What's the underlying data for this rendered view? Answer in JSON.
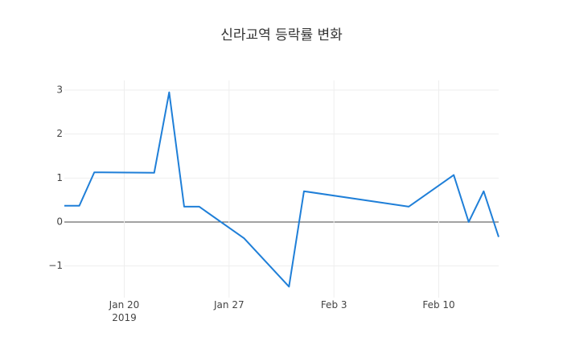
{
  "chart_data": {
    "type": "line",
    "title": "신라교역 등락률 변화",
    "x": [
      "2019-01-16",
      "2019-01-17",
      "2019-01-18",
      "2019-01-22",
      "2019-01-23",
      "2019-01-24",
      "2019-01-25",
      "2019-01-28",
      "2019-01-31",
      "2019-02-01",
      "2019-02-08",
      "2019-02-11",
      "2019-02-12",
      "2019-02-13",
      "2019-02-14"
    ],
    "series": [
      {
        "color": "#1f7fd8",
        "values": [
          0.37,
          0.37,
          1.13,
          1.12,
          2.95,
          0.35,
          0.35,
          -0.37,
          -1.47,
          0.7,
          0.35,
          1.07,
          0.0,
          0.7,
          -0.34
        ]
      }
    ],
    "xlim": [
      "2019-01-16",
      "2019-02-14"
    ],
    "xticks": [
      {
        "value": "2019-01-20",
        "label": "Jan 20\n2019"
      },
      {
        "value": "2019-01-27",
        "label": "Jan 27"
      },
      {
        "value": "2019-02-03",
        "label": "Feb 3"
      },
      {
        "value": "2019-02-10",
        "label": "Feb 10"
      }
    ],
    "ylim": [
      -1.72,
      3.22
    ],
    "yticks": [
      {
        "value": -1,
        "label": "−1"
      },
      0,
      1,
      2,
      3
    ],
    "grid": true
  }
}
